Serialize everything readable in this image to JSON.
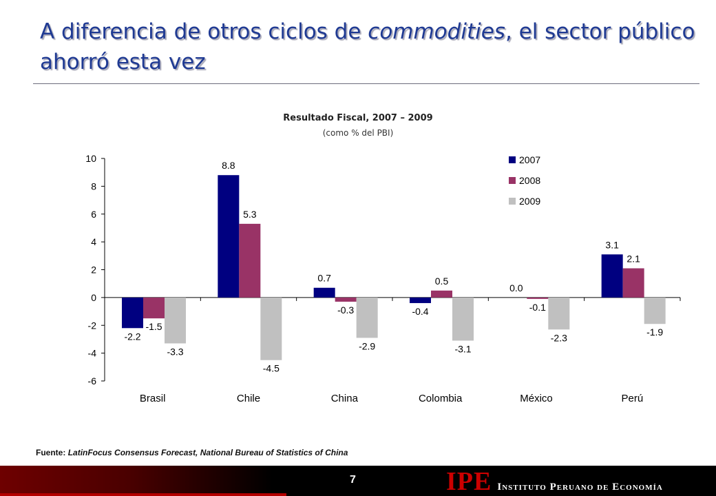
{
  "slide": {
    "title_part1": "A diferencia de otros ciclos de ",
    "title_italic": "commodities",
    "title_part2": ", el sector público ahorró esta vez",
    "source_label": "Fuente:",
    "source_text": "LatinFocus Consensus Forecast, National Bureau of Statistics of China",
    "page_number": "7",
    "logo_mark": "IPE",
    "logo_name": "Instituto Peruano de Economía"
  },
  "colors": {
    "title": "#1f3a93",
    "series_2007": "#000080",
    "series_2008": "#993366",
    "series_2009": "#c0c0c0",
    "footer_red": "#cc0000"
  },
  "chart_data": {
    "type": "bar",
    "title": "Resultado Fiscal, 2007 – 2009",
    "subtitle": "(como % del PBI)",
    "categories": [
      "Brasil",
      "Chile",
      "China",
      "Colombia",
      "México",
      "Perú"
    ],
    "series": [
      {
        "name": "2007",
        "values": [
          -2.2,
          8.8,
          0.7,
          -0.4,
          0.0,
          3.1
        ],
        "labels": [
          "-2.2",
          "8.8",
          "0.7",
          "-0.4",
          "0.0",
          "3.1"
        ]
      },
      {
        "name": "2008",
        "values": [
          -1.5,
          5.3,
          -0.3,
          0.5,
          -0.1,
          2.1
        ],
        "labels": [
          "-1.5",
          "5.3",
          "-0.3",
          "0.5",
          "-0.1",
          "2.1"
        ]
      },
      {
        "name": "2009",
        "values": [
          -3.3,
          -4.5,
          -2.9,
          -3.1,
          -2.3,
          -1.9
        ],
        "labels": [
          "-3.3",
          "-4.5",
          "-2.9",
          "-3.1",
          "-2.3",
          "-1.9"
        ]
      }
    ],
    "ylim": [
      -6,
      10
    ],
    "yticks": [
      "10",
      "8",
      "6",
      "4",
      "2",
      "0",
      "-2",
      "-4",
      "-6"
    ],
    "ytick_values": [
      10,
      8,
      6,
      4,
      2,
      0,
      -2,
      -4,
      -6
    ],
    "xlabel": "",
    "ylabel": "",
    "grid": false,
    "legend_position": "top-right"
  }
}
